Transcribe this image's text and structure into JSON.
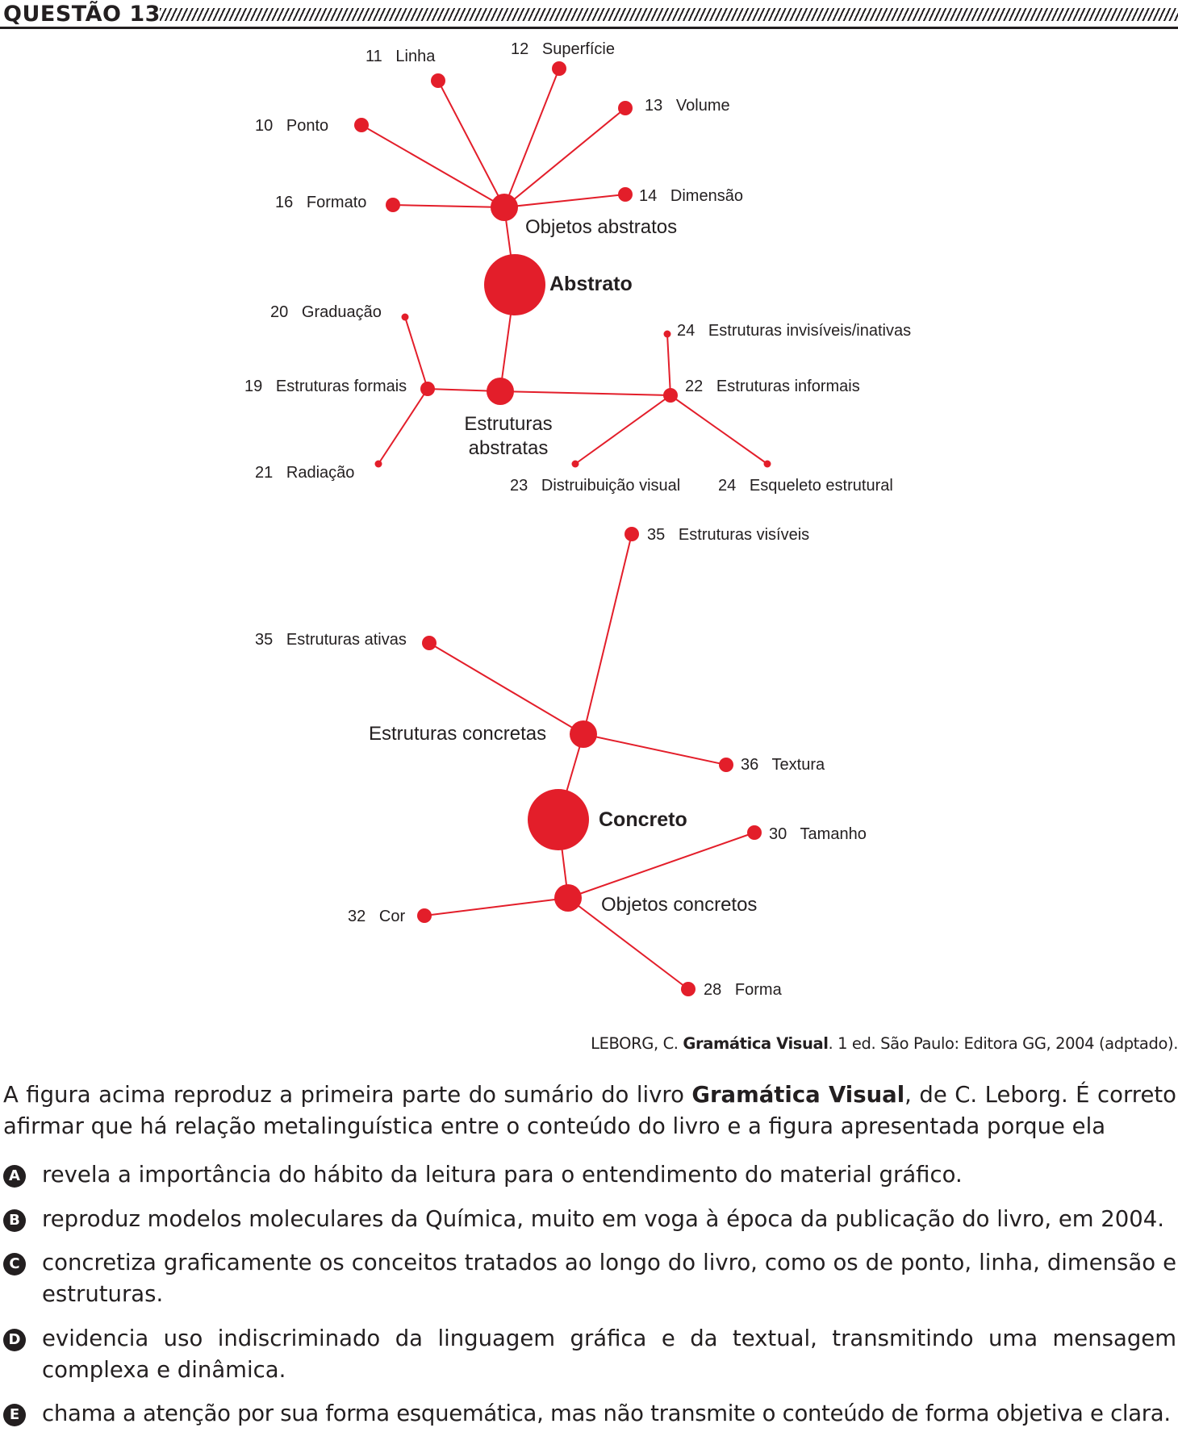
{
  "question": {
    "title": "QUESTÃO 13"
  },
  "diagram": {
    "color": "#e31e2a",
    "labels": {
      "linha": "11   Linha",
      "superficie": "12   Superfície",
      "ponto": "10   Ponto",
      "volume": "13   Volume",
      "formato": "16   Formato",
      "dimensao": "14   Dimensão",
      "objetos_abstratos": "Objetos abstratos",
      "abstrato": "Abstrato",
      "graduacao": "20   Graduação",
      "invisiveis": "24   Estruturas invisíveis/inativas",
      "formais": "19   Estruturas formais",
      "informais": "22   Estruturas informais",
      "estruturas_abstratas_1": "Estruturas",
      "estruturas_abstratas_2": "abstratas",
      "radiacao": "21   Radiação",
      "distribuicao": "23   Distruibuição visual",
      "esqueleto": "24   Esqueleto estrutural",
      "visiveis": "35   Estruturas visíveis",
      "ativas": "35   Estruturas ativas",
      "estruturas_concretas": "Estruturas concretas",
      "textura": "36   Textura",
      "concreto": "Concreto",
      "tamanho": "30   Tamanho",
      "cor": "32   Cor",
      "objetos_concretos": "Objetos concretos",
      "forma": "28   Forma"
    }
  },
  "source": {
    "prefix": "LEBORG, C. ",
    "book": "Gramática Visual",
    "suffix": ". 1 ed. São Paulo: Editora GG, 2004 (adptado)."
  },
  "stem": {
    "part1": "A figura acima reproduz a primeira parte do sumário do livro ",
    "book": "Gramática Visual",
    "part2": ", de C. Leborg. É correto afirmar que há relação metalinguística entre o conteúdo do livro e a figura apresentada porque ela"
  },
  "options": [
    {
      "letter": "A",
      "text": "revela a importância do hábito da leitura para o entendimento do material gráfico."
    },
    {
      "letter": "B",
      "text": "reproduz modelos moleculares da Química, muito em voga à época da publicação do livro, em 2004."
    },
    {
      "letter": "C",
      "text": "concretiza graficamente os conceitos tratados ao longo do livro, como os de ponto, linha, dimensão e estruturas."
    },
    {
      "letter": "D",
      "text": "evidencia uso indiscriminado da linguagem gráfica e da textual, transmitindo uma mensagem complexa e dinâmica."
    },
    {
      "letter": "E",
      "text": "chama a atenção por sua forma esquemática, mas não transmite o conteúdo de forma objetiva e clara."
    }
  ]
}
